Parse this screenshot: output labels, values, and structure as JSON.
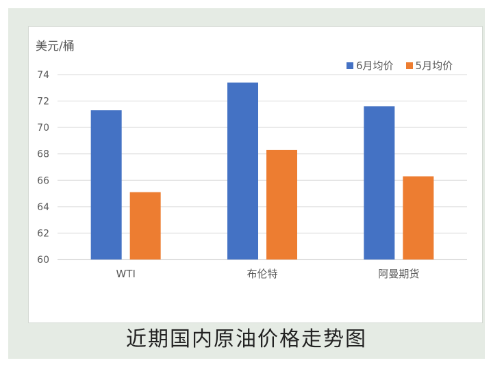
{
  "caption": "近期国内原油价格走势图",
  "colors": {
    "series1": "#4472c4",
    "series2": "#ed7d31",
    "grid": "#d9d9d9",
    "text": "#595959"
  },
  "chart_data": {
    "type": "bar",
    "title": "",
    "ylabel": "美元/桶",
    "xlabel": "",
    "ylim": [
      60,
      74
    ],
    "yticks": [
      60,
      62,
      64,
      66,
      68,
      70,
      72,
      74
    ],
    "categories": [
      "WTI",
      "布伦特",
      "阿曼期货"
    ],
    "series": [
      {
        "name": "6月均价",
        "values": [
          71.3,
          73.4,
          71.6
        ]
      },
      {
        "name": "5月均价",
        "values": [
          65.1,
          68.3,
          66.3
        ]
      }
    ],
    "legend": "top-right",
    "grid": true
  }
}
